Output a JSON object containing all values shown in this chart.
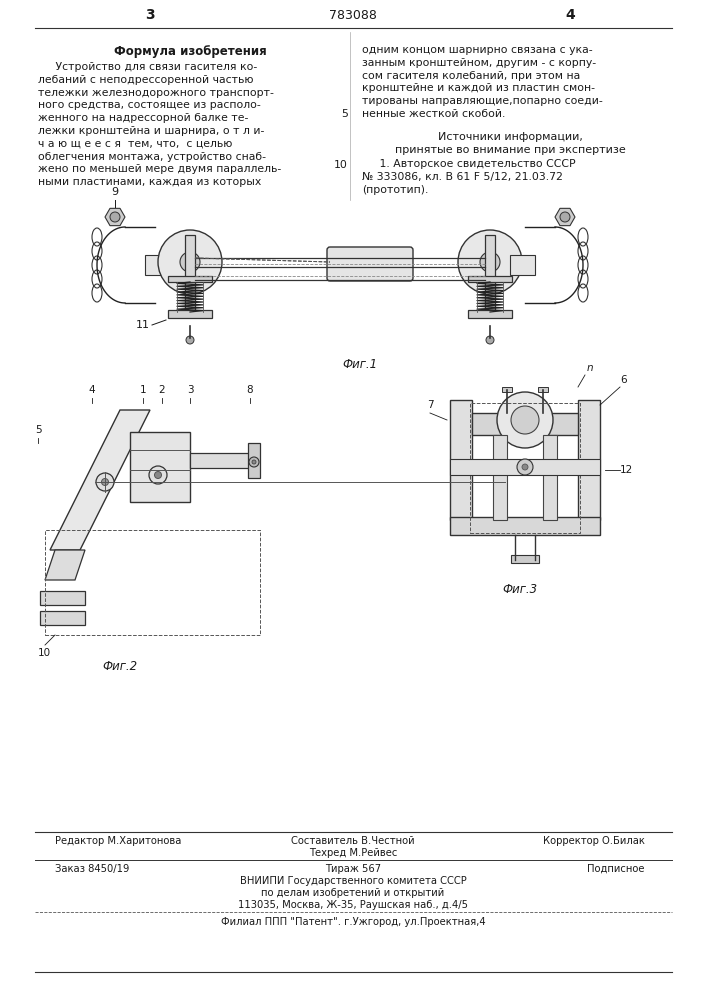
{
  "page_number_left": "3",
  "patent_number": "783088",
  "page_number_right": "4",
  "col_left_header": "Формула изобретения",
  "col_left_para1": "     Устройство для связи гасителя ко-",
  "col_left_lines": [
    "     Устройство для связи гасителя ко-",
    "лебаний с неподрессоренной частью",
    "тележки железнодорожного транспорт-",
    "ного средства, состоящее из располо-",
    "женного на надрессорной балке те-",
    "лежки кронштейна и шарнира, о т л и-",
    "ч а ю щ е е с я  тем, что,  с целью",
    "облегчения монтажа, устройство снаб-",
    "жено по меньшей мере двумя параллель-",
    "ными пластинами, каждая из которых"
  ],
  "col_right_lines": [
    "одним концом шарнирно связана с ука-",
    "занным кронштейном, другим - с корпу-",
    "сом гасителя колебаний, при этом на",
    "кронштейне и каждой из пластин смон-",
    "тированы направляющие,попарно соеди-",
    "ненные жесткой скобой."
  ],
  "margin_number_5": "5",
  "margin_number_10": "10",
  "sources_header": "Источники информации,",
  "sources_sub": "принятые во внимание при экспертизе",
  "sources_lines": [
    "     1. Авторское свидетельство СССР",
    "№ 333086, кл. В 61 F 5/12, 21.03.72",
    "(прототип)."
  ],
  "fig1_label": "Фиг.1",
  "fig2_label": "Фиг.2",
  "fig3_label": "Фиг.3",
  "footer_editor": "Редактор М.Харитонова",
  "footer_composer": "Составитель В.Честной",
  "footer_tech": "Техред М.Рейвес",
  "footer_corrector": "Корректор О.Билак",
  "footer_order": "Заказ 8450/19",
  "footer_circ": "Тираж 567",
  "footer_sub": "Подписное",
  "footer_inst1": "ВНИИПИ Государственного комитета СССР",
  "footer_inst2": "по делам изобретений и открытий",
  "footer_inst3": "113035, Москва, Ж-35, Раушская наб., д.4/5",
  "footer_branch": "Филиал ППП \"Патент\". г.Ужгород, ул.Проектная,4",
  "bg_color": "#ffffff",
  "text_color": "#1a1a1a"
}
